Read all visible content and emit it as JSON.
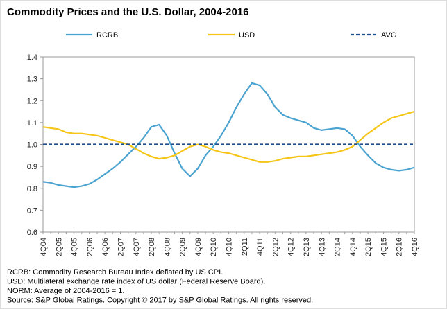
{
  "chart_data": {
    "type": "line",
    "title": "Commodity Prices and the U.S. Dollar, 2004-2016",
    "categories": [
      "4Q04",
      null,
      "2Q05",
      null,
      "4Q05",
      null,
      "2Q06",
      null,
      "4Q06",
      null,
      "2Q07",
      null,
      "4Q07",
      null,
      "2Q08",
      null,
      "4Q08",
      null,
      "2Q09",
      null,
      "4Q09",
      null,
      "2Q10",
      null,
      "4Q10",
      null,
      "2Q11",
      null,
      "4Q11",
      null,
      "2Q12",
      null,
      "4Q12",
      null,
      "2Q13",
      null,
      "4Q13",
      null,
      "2Q14",
      null,
      "4Q14",
      null,
      "2Q15",
      null,
      "4Q15",
      null,
      "2Q16",
      null,
      "4Q16"
    ],
    "series": [
      {
        "name": "RCRB",
        "color": "#4ba3d0",
        "style": "solid",
        "values": [
          0.83,
          0.825,
          0.815,
          0.81,
          0.805,
          0.81,
          0.82,
          0.84,
          0.865,
          0.89,
          0.92,
          0.955,
          0.99,
          1.03,
          1.08,
          1.09,
          1.04,
          0.96,
          0.89,
          0.855,
          0.89,
          0.95,
          0.99,
          1.04,
          1.1,
          1.17,
          1.23,
          1.28,
          1.27,
          1.23,
          1.17,
          1.135,
          1.12,
          1.11,
          1.1,
          1.075,
          1.065,
          1.07,
          1.075,
          1.07,
          1.04,
          0.99,
          0.95,
          0.915,
          0.895,
          0.885,
          0.88,
          0.885,
          0.895
        ]
      },
      {
        "name": "USD",
        "color": "#f5c518",
        "style": "solid",
        "values": [
          1.08,
          1.075,
          1.07,
          1.055,
          1.05,
          1.05,
          1.045,
          1.04,
          1.03,
          1.02,
          1.01,
          1.0,
          0.98,
          0.96,
          0.945,
          0.935,
          0.94,
          0.95,
          0.97,
          0.99,
          1.0,
          0.99,
          0.975,
          0.965,
          0.96,
          0.95,
          0.94,
          0.93,
          0.92,
          0.92,
          0.925,
          0.935,
          0.94,
          0.945,
          0.945,
          0.95,
          0.955,
          0.96,
          0.965,
          0.975,
          0.99,
          1.02,
          1.05,
          1.075,
          1.1,
          1.12,
          1.13,
          1.14,
          1.15
        ]
      },
      {
        "name": "AVG",
        "color": "#1f4e8c",
        "style": "dashed",
        "values": [
          1,
          1,
          1,
          1,
          1,
          1,
          1,
          1,
          1,
          1,
          1,
          1,
          1,
          1,
          1,
          1,
          1,
          1,
          1,
          1,
          1,
          1,
          1,
          1,
          1,
          1,
          1,
          1,
          1,
          1,
          1,
          1,
          1,
          1,
          1,
          1,
          1,
          1,
          1,
          1,
          1,
          1,
          1,
          1,
          1,
          1,
          1,
          1,
          1
        ]
      }
    ],
    "ylim": [
      0.6,
      1.4
    ],
    "yticks": [
      0.6,
      0.7,
      0.8,
      0.9,
      {
        "value": 1.0,
        "label": "1.0"
      },
      1.1,
      1.2,
      1.3,
      1.4
    ],
    "grid": false,
    "legend": "top",
    "notes": [
      "RCRB: Commodity Research Bureau Index deflated by US CPI.",
      "USD: Multilateral exchange rate index of US dollar (Federal Reserve Board).",
      "NORM: Average of 2004-2016 = 1.",
      "Source: S&P Global Ratings. Copyright © 2017 by S&P Global Ratings. All rights reserved."
    ]
  }
}
